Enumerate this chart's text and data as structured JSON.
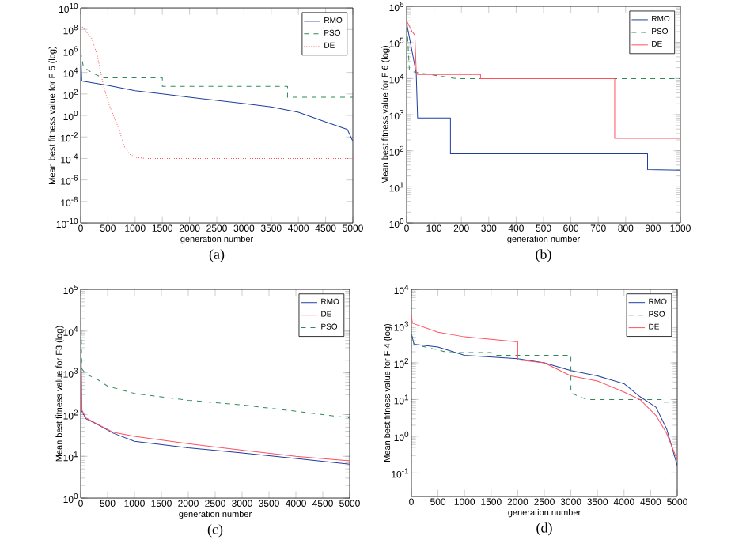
{
  "chart_data": [
    {
      "type": "line",
      "xlabel": "generation number",
      "ylabel": "Mean best fitness value for F 5 (log)",
      "log": "y",
      "legend": "top right",
      "annotations": [
        "(a)"
      ],
      "xlim": [
        0,
        5000
      ],
      "xticks": [
        0,
        500,
        1000,
        1500,
        2000,
        2500,
        3000,
        3500,
        4000,
        4500,
        5000
      ],
      "ylim": [
        1e-10,
        10000000000.0
      ],
      "yticks": [
        {
          "value": 1e-10,
          "label": "10$^{-10}$"
        },
        {
          "value": 1e-08,
          "label": "10$^{-8}$"
        },
        {
          "value": 1e-06,
          "label": "10$^{-6}$"
        },
        {
          "value": 0.0001,
          "label": "10$^{-4}$"
        },
        {
          "value": 0.01,
          "label": "10$^{-2}$"
        },
        {
          "value": 1,
          "label": "10$^{0}$"
        },
        {
          "value": 100.0,
          "label": "10$^{2}$"
        },
        {
          "value": 10000.0,
          "label": "10$^{4}$"
        },
        {
          "value": 1000000.0,
          "label": "10$^{6}$"
        },
        {
          "value": 100000000.0,
          "label": "10$^{8}$"
        },
        {
          "value": 10000000000.0,
          "label": "10$^{10}$"
        }
      ],
      "series": [
        {
          "name": "RMO",
          "color": "#1f3f9f",
          "line_style": "solid",
          "x": [
            0,
            20,
            500,
            1000,
            1500,
            2000,
            2500,
            3000,
            3500,
            4000,
            4500,
            4900,
            5000
          ],
          "values": [
            1600000.0,
            1600,
            630,
            200,
            100,
            50,
            25,
            13,
            6.3,
            2,
            0.25,
            0.05,
            0.004
          ]
        },
        {
          "name": "PSO",
          "color": "#2e8b57",
          "line_style": "dashed",
          "x": [
            0,
            50,
            200,
            400,
            1500,
            1500,
            3800,
            3800,
            5000
          ],
          "values": [
            790000.0,
            32000.0,
            10000.0,
            3200,
            3200,
            500,
            500,
            50,
            50
          ]
        },
        {
          "name": "DE",
          "color": "#ff5060",
          "line_style": "dotted",
          "x": [
            0,
            200,
            300,
            400,
            500,
            600,
            700,
            800,
            900,
            1000,
            1200,
            5000
          ],
          "values": [
            250000000.0,
            16000000.0,
            500000.0,
            1600,
            20,
            1,
            0.063,
            0.0013,
            0.00025,
            0.00013,
            0.0001,
            0.0001
          ]
        }
      ]
    },
    {
      "type": "line",
      "xlabel": "generation number",
      "ylabel": "Mean best fitness value for F 6 (log)",
      "log": "y",
      "legend": "top right",
      "annotations": [
        "(b)"
      ],
      "xlim": [
        0,
        1000
      ],
      "xticks": [
        0,
        100,
        200,
        300,
        400,
        500,
        600,
        700,
        800,
        900,
        1000
      ],
      "ylim": [
        1,
        1000000.0
      ],
      "yticks": [
        {
          "value": 1,
          "label": "10$^{0}$"
        },
        {
          "value": 10,
          "label": "10$^{1}$"
        },
        {
          "value": 100,
          "label": "10$^{2}$"
        },
        {
          "value": 1000,
          "label": "10$^{3}$"
        },
        {
          "value": 10000.0,
          "label": "10$^{4}$"
        },
        {
          "value": 100000.0,
          "label": "10$^{5}$"
        },
        {
          "value": 1000000.0,
          "label": "10$^{6}$"
        }
      ],
      "series": [
        {
          "name": "RMO",
          "color": "#1f3f9f",
          "line_style": "solid",
          "x": [
            0,
            15,
            35,
            40,
            160,
            160,
            880,
            880,
            1000
          ],
          "values": [
            340000.0,
            89000.0,
            14000.0,
            810,
            810,
            83,
            83,
            30,
            29
          ]
        },
        {
          "name": "PSO",
          "color": "#2e8b57",
          "line_style": "dashed",
          "x": [
            0,
            10,
            30,
            180,
            1000
          ],
          "values": [
            480000.0,
            17000.0,
            15000.0,
            10000.0,
            10000.0
          ]
        },
        {
          "name": "DE",
          "color": "#ff5060",
          "line_style": "solid",
          "x": [
            0,
            20,
            30,
            35,
            40,
            270,
            270,
            760,
            760,
            1000
          ],
          "values": [
            400000.0,
            200000.0,
            160000.0,
            16000.0,
            13000.0,
            13000.0,
            10000.0,
            10000.0,
            220,
            220
          ]
        }
      ]
    },
    {
      "type": "line",
      "xlabel": "generation number",
      "ylabel": "Mean best fitness value for F3 (log)",
      "log": "y",
      "legend": "top right",
      "annotations": [
        "(c)"
      ],
      "xlim": [
        0,
        5000
      ],
      "xticks": [
        0,
        500,
        1000,
        1500,
        2000,
        2500,
        3000,
        3500,
        4000,
        4500,
        5000
      ],
      "ylim": [
        1,
        100000.0
      ],
      "yticks": [
        {
          "value": 1,
          "label": "10$^{0}$"
        },
        {
          "value": 10,
          "label": "10$^{1}$"
        },
        {
          "value": 100,
          "label": "10$^{2}$"
        },
        {
          "value": 1000,
          "label": "10$^{3}$"
        },
        {
          "value": 10000.0,
          "label": "10$^{4}$"
        },
        {
          "value": 100000.0,
          "label": "10$^{5}$"
        }
      ],
      "series": [
        {
          "name": "RMO",
          "color": "#1f3f9f",
          "line_style": "solid",
          "x": [
            0,
            20,
            100,
            300,
            600,
            1000,
            2000,
            3000,
            4000,
            5000
          ],
          "values": [
            15000.0,
            120,
            79,
            59,
            36,
            23,
            16,
            12,
            8.9,
            6.5
          ]
        },
        {
          "name": "DE",
          "color": "#ff5060",
          "line_style": "solid",
          "x": [
            0,
            20,
            100,
            300,
            600,
            1000,
            2000,
            3000,
            4000,
            5000
          ],
          "values": [
            17000.0,
            130,
            83,
            60,
            38,
            30,
            20,
            14,
            10,
            7.8
          ]
        },
        {
          "name": "PSO",
          "color": "#2e8b57",
          "line_style": "dashed",
          "x": [
            0,
            20,
            100,
            300,
            500,
            1000,
            2000,
            3000,
            4000,
            5000
          ],
          "values": [
            87000.0,
            1260,
            930,
            710,
            480,
            320,
            220,
            170,
            120,
            83
          ]
        }
      ]
    },
    {
      "type": "line",
      "xlabel": "generation number",
      "ylabel": "Mean best fitness value for F 4 (log)",
      "log": "y",
      "legend": "top right",
      "annotations": [
        "(d)"
      ],
      "xlim": [
        0,
        5000
      ],
      "xticks": [
        0,
        500,
        1000,
        1500,
        2000,
        2500,
        3000,
        3500,
        4000,
        4500,
        5000
      ],
      "ylim": [
        0.023,
        10000.0
      ],
      "yticks": [
        {
          "value": 0.1,
          "label": "10$^{-1}$"
        },
        {
          "value": 1,
          "label": "10$^{0}$"
        },
        {
          "value": 10,
          "label": "10$^{1}$"
        },
        {
          "value": 100,
          "label": "10$^{2}$"
        },
        {
          "value": 1000,
          "label": "10$^{3}$"
        },
        {
          "value": 10000.0,
          "label": "10$^{4}$"
        }
      ],
      "series": [
        {
          "name": "RMO",
          "color": "#1f3f9f",
          "line_style": "solid",
          "x": [
            0,
            50,
            500,
            1000,
            2000,
            2500,
            3000,
            3500,
            4000,
            4300,
            4600,
            4800,
            5000
          ],
          "values": [
            620,
            320,
            270,
            160,
            130,
            100,
            62,
            44,
            27,
            12,
            6.2,
            1.6,
            0.16
          ]
        },
        {
          "name": "PSO",
          "color": "#2e8b57",
          "line_style": "dashed",
          "x": [
            0,
            50,
            700,
            1500,
            1600,
            3000,
            3000,
            3300,
            4700,
            4700,
            5000
          ],
          "values": [
            620,
            320,
            190,
            190,
            160,
            160,
            15,
            10,
            10,
            8.5,
            8.5
          ]
        },
        {
          "name": "DE",
          "color": "#ff5060",
          "line_style": "solid",
          "x": [
            0,
            20,
            500,
            1000,
            2000,
            2000,
            2500,
            3000,
            3500,
            4000,
            4300,
            4600,
            4800,
            5000
          ],
          "values": [
            1950,
            1200,
            680,
            510,
            370,
            120,
            100,
            44,
            32,
            16,
            10,
            3.7,
            1.2,
            0.23
          ]
        }
      ]
    }
  ]
}
